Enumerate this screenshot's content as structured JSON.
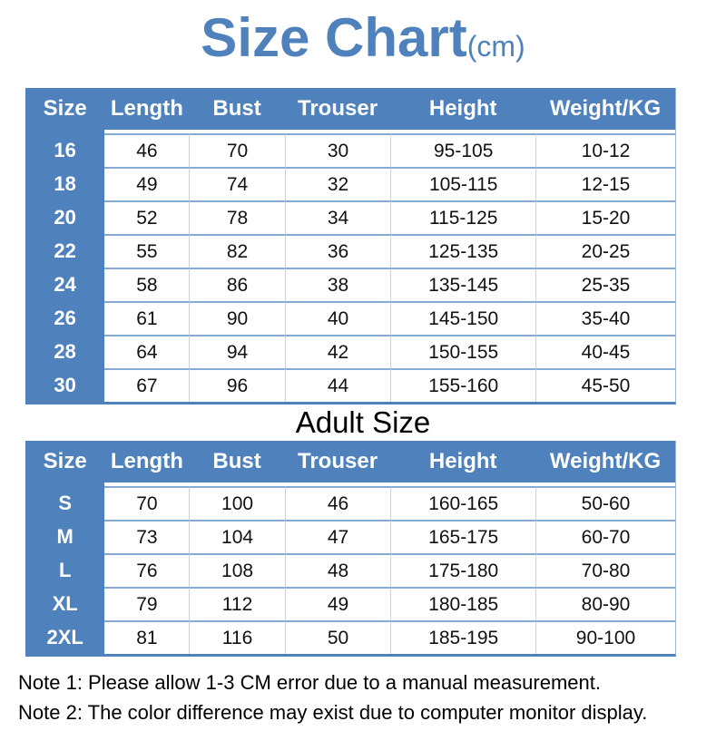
{
  "title": {
    "text": "Size Chart",
    "unit": "(cm)"
  },
  "colors": {
    "accent_blue": "#4f81bd",
    "row_divider": "#86a9d6",
    "column_divider": "#c9d3e2",
    "header_text": "#ffffff",
    "body_text": "#111111"
  },
  "tables": [
    {
      "name": "kids",
      "heading": null,
      "headers": [
        "Size",
        "Length",
        "Bust",
        "Trouser",
        "Height",
        "Weight/KG"
      ],
      "rows": [
        [
          "16",
          "46",
          "70",
          "30",
          "95-105",
          "10-12"
        ],
        [
          "18",
          "49",
          "74",
          "32",
          "105-115",
          "12-15"
        ],
        [
          "20",
          "52",
          "78",
          "34",
          "115-125",
          "15-20"
        ],
        [
          "22",
          "55",
          "82",
          "36",
          "125-135",
          "20-25"
        ],
        [
          "24",
          "58",
          "86",
          "38",
          "135-145",
          "25-35"
        ],
        [
          "26",
          "61",
          "90",
          "40",
          "145-150",
          "35-40"
        ],
        [
          "28",
          "64",
          "94",
          "42",
          "150-155",
          "40-45"
        ],
        [
          "30",
          "67",
          "96",
          "44",
          "155-160",
          "45-50"
        ]
      ]
    },
    {
      "name": "adult",
      "heading": "Adult Size",
      "headers": [
        "Size",
        "Length",
        "Bust",
        "Trouser",
        "Height",
        "Weight/KG"
      ],
      "rows": [
        [
          "S",
          "70",
          "100",
          "46",
          "160-165",
          "50-60"
        ],
        [
          "M",
          "73",
          "104",
          "47",
          "165-175",
          "60-70"
        ],
        [
          "L",
          "76",
          "108",
          "48",
          "175-180",
          "70-80"
        ],
        [
          "XL",
          "79",
          "112",
          "49",
          "180-185",
          "80-90"
        ],
        [
          "2XL",
          "81",
          "116",
          "50",
          "185-195",
          "90-100"
        ]
      ]
    }
  ],
  "notes": [
    "Note 1: Please allow 1-3 CM error due to a manual measurement.",
    "Note 2: The color difference may exist due to computer monitor display."
  ]
}
